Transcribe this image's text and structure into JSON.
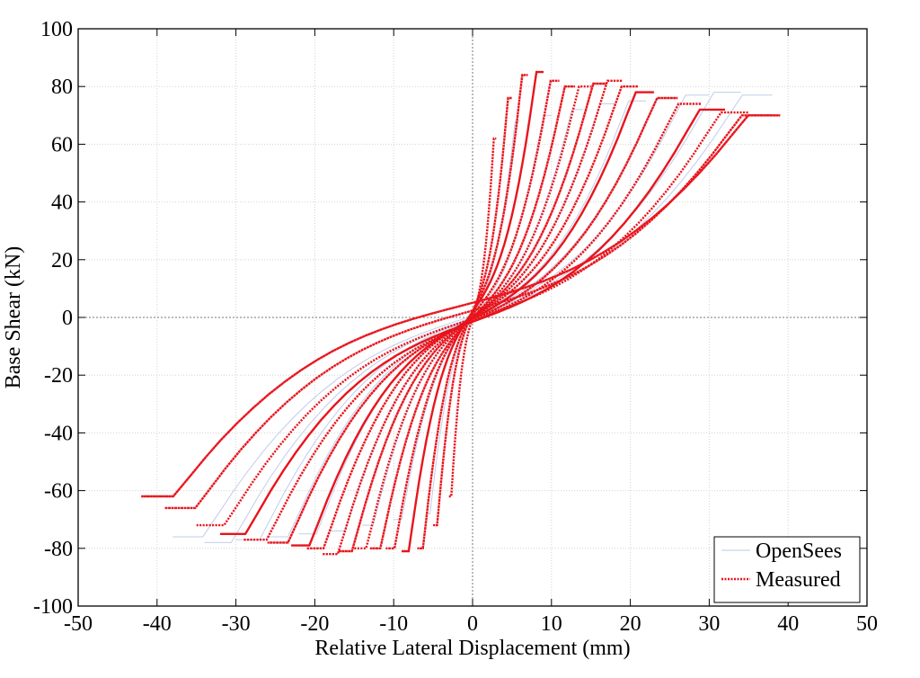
{
  "chart_data": {
    "type": "line",
    "title": "",
    "xlabel": "Relative Lateral Displacement (mm)",
    "ylabel": "Base Shear (kN)",
    "xlim": [
      -50,
      50
    ],
    "ylim": [
      -100,
      100
    ],
    "xticks": [
      -50,
      -40,
      -30,
      -20,
      -10,
      0,
      10,
      20,
      30,
      40,
      50
    ],
    "yticks": [
      -100,
      -80,
      -60,
      -40,
      -20,
      0,
      20,
      40,
      60,
      80,
      100
    ],
    "xtick_labels": [
      "-50",
      "-40",
      "-30",
      "-20",
      "-10",
      "0",
      "10",
      "20",
      "30",
      "40",
      "50"
    ],
    "ytick_labels": [
      "-100",
      "-80",
      "-60",
      "-40",
      "-20",
      "0",
      "20",
      "40",
      "60",
      "80",
      "100"
    ],
    "grid": true,
    "legend_position": "bottom-right",
    "series": [
      {
        "name": "OpenSees",
        "color": "#b8c8e8",
        "style": "thin solid",
        "loops": [
          {
            "dmax": 6,
            "fmax": 68,
            "dmin": -6,
            "fmin": -68
          },
          {
            "dmax": 10,
            "fmax": 70,
            "dmin": -10,
            "fmin": -70
          },
          {
            "dmax": 14,
            "fmax": 72,
            "dmin": -14,
            "fmin": -72
          },
          {
            "dmax": 18,
            "fmax": 74,
            "dmin": -18,
            "fmin": -74
          },
          {
            "dmax": 22,
            "fmax": 75,
            "dmin": -22,
            "fmin": -75
          },
          {
            "dmax": 26,
            "fmax": 76,
            "dmin": -26,
            "fmin": -76
          },
          {
            "dmax": 30,
            "fmax": 77,
            "dmin": -30,
            "fmin": -77
          },
          {
            "dmax": 34,
            "fmax": 78,
            "dmin": -34,
            "fmin": -78
          },
          {
            "dmax": 38,
            "fmax": 77,
            "dmin": -38,
            "fmin": -76
          }
        ]
      },
      {
        "name": "Measured",
        "color": "#e8141c",
        "style": "dotted",
        "loops": [
          {
            "dmax": 3,
            "fmax": 62,
            "dmin": -3,
            "fmin": -62
          },
          {
            "dmax": 5,
            "fmax": 76,
            "dmin": -5,
            "fmin": -72
          },
          {
            "dmax": 7,
            "fmax": 84,
            "dmin": -7,
            "fmin": -80
          },
          {
            "dmax": 9,
            "fmax": 85,
            "dmin": -9,
            "fmin": -81
          },
          {
            "dmax": 11,
            "fmax": 82,
            "dmin": -11,
            "fmin": -80
          },
          {
            "dmax": 13,
            "fmax": 80,
            "dmin": -13,
            "fmin": -80
          },
          {
            "dmax": 15,
            "fmax": 80,
            "dmin": -15,
            "fmin": -80
          },
          {
            "dmax": 17,
            "fmax": 81,
            "dmin": -17,
            "fmin": -81
          },
          {
            "dmax": 19,
            "fmax": 82,
            "dmin": -19,
            "fmin": -82
          },
          {
            "dmax": 21,
            "fmax": 80,
            "dmin": -21,
            "fmin": -80
          },
          {
            "dmax": 23,
            "fmax": 78,
            "dmin": -23,
            "fmin": -79
          },
          {
            "dmax": 26,
            "fmax": 76,
            "dmin": -26,
            "fmin": -78
          },
          {
            "dmax": 29,
            "fmax": 74,
            "dmin": -29,
            "fmin": -77
          },
          {
            "dmax": 32,
            "fmax": 72,
            "dmin": -32,
            "fmin": -75
          },
          {
            "dmax": 35,
            "fmax": 71,
            "dmin": -35,
            "fmin": -72
          },
          {
            "dmax": 38,
            "fmax": 70,
            "dmin": -39,
            "fmin": -66
          },
          {
            "dmax": 39,
            "fmax": 70,
            "dmin": -42,
            "fmin": -62
          }
        ]
      }
    ]
  }
}
